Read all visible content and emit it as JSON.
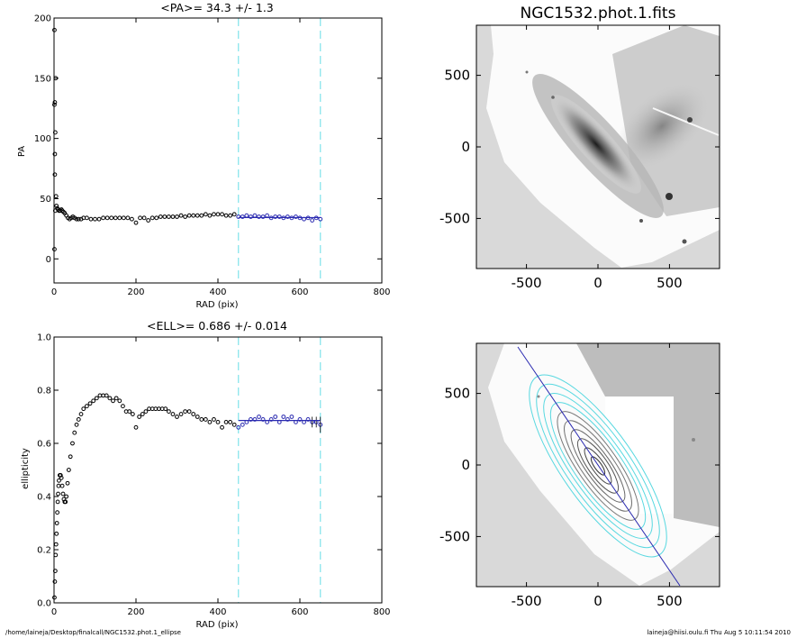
{
  "chart_data": [
    {
      "id": "pa",
      "type": "scatter",
      "title": "<PA>=  34.3 +/-   1.3",
      "xlabel": "RAD (pix)",
      "ylabel": "PA",
      "xlim": [
        0,
        800
      ],
      "ylim": [
        -20,
        200
      ],
      "xticks": [
        0,
        200,
        400,
        600,
        800
      ],
      "yticks": [
        0,
        50,
        100,
        150,
        200
      ],
      "fit_range": [
        450,
        650
      ],
      "fit_mean": 34.3,
      "fit_error": 1.3,
      "points": [
        [
          1,
          128
        ],
        [
          2,
          130
        ],
        [
          1,
          190
        ],
        [
          2,
          70
        ],
        [
          1,
          8
        ],
        [
          3,
          105
        ],
        [
          4,
          150
        ],
        [
          2,
          87
        ],
        [
          3,
          40
        ],
        [
          5,
          52
        ],
        [
          6,
          44
        ],
        [
          8,
          42
        ],
        [
          10,
          41
        ],
        [
          12,
          40
        ],
        [
          15,
          40
        ],
        [
          18,
          41
        ],
        [
          20,
          40
        ],
        [
          23,
          39
        ],
        [
          26,
          38
        ],
        [
          30,
          36
        ],
        [
          34,
          34
        ],
        [
          38,
          33
        ],
        [
          42,
          34
        ],
        [
          46,
          35
        ],
        [
          50,
          34
        ],
        [
          55,
          33
        ],
        [
          60,
          33
        ],
        [
          66,
          33
        ],
        [
          72,
          34
        ],
        [
          80,
          34
        ],
        [
          90,
          33
        ],
        [
          100,
          33
        ],
        [
          110,
          33
        ],
        [
          120,
          34
        ],
        [
          130,
          34
        ],
        [
          140,
          34
        ],
        [
          150,
          34
        ],
        [
          160,
          34
        ],
        [
          170,
          34
        ],
        [
          180,
          34
        ],
        [
          190,
          33
        ],
        [
          200,
          30
        ],
        [
          210,
          34
        ],
        [
          220,
          34
        ],
        [
          230,
          32
        ],
        [
          240,
          34
        ],
        [
          250,
          34
        ],
        [
          260,
          35
        ],
        [
          270,
          35
        ],
        [
          280,
          35
        ],
        [
          290,
          35
        ],
        [
          300,
          35
        ],
        [
          310,
          36
        ],
        [
          320,
          35
        ],
        [
          330,
          36
        ],
        [
          340,
          36
        ],
        [
          350,
          36
        ],
        [
          360,
          36
        ],
        [
          370,
          37
        ],
        [
          380,
          36
        ],
        [
          390,
          37
        ],
        [
          400,
          37
        ],
        [
          410,
          37
        ],
        [
          420,
          36
        ],
        [
          430,
          36
        ],
        [
          440,
          37
        ],
        [
          450,
          35
        ],
        [
          460,
          35
        ],
        [
          470,
          36
        ],
        [
          480,
          35
        ],
        [
          490,
          36
        ],
        [
          500,
          35
        ],
        [
          510,
          35
        ],
        [
          520,
          36
        ],
        [
          530,
          34
        ],
        [
          540,
          35
        ],
        [
          550,
          35
        ],
        [
          560,
          34
        ],
        [
          570,
          35
        ],
        [
          580,
          34
        ],
        [
          590,
          35
        ],
        [
          600,
          34
        ],
        [
          610,
          33
        ],
        [
          620,
          34
        ],
        [
          630,
          32
        ],
        [
          640,
          34
        ],
        [
          650,
          33
        ]
      ]
    },
    {
      "id": "ell",
      "type": "scatter",
      "title": "<ELL>= 0.686 +/-  0.014",
      "xlabel": "RAD (pix)",
      "ylabel": "ellipticity",
      "xlim": [
        0,
        800
      ],
      "ylim": [
        0,
        1
      ],
      "xticks": [
        0,
        200,
        400,
        600,
        800
      ],
      "yticks": [
        0.0,
        0.2,
        0.4,
        0.6,
        0.8,
        1.0
      ],
      "fit_range": [
        450,
        650
      ],
      "fit_mean": 0.686,
      "fit_error": 0.014,
      "points": [
        [
          1,
          0.02
        ],
        [
          2,
          0.08
        ],
        [
          3,
          0.12
        ],
        [
          4,
          0.18
        ],
        [
          5,
          0.22
        ],
        [
          6,
          0.26
        ],
        [
          7,
          0.3
        ],
        [
          8,
          0.34
        ],
        [
          9,
          0.38
        ],
        [
          10,
          0.41
        ],
        [
          11,
          0.44
        ],
        [
          12,
          0.46
        ],
        [
          14,
          0.48
        ],
        [
          16,
          0.48
        ],
        [
          18,
          0.47
        ],
        [
          20,
          0.44
        ],
        [
          22,
          0.41
        ],
        [
          24,
          0.39
        ],
        [
          26,
          0.38
        ],
        [
          28,
          0.38
        ],
        [
          30,
          0.4
        ],
        [
          33,
          0.45
        ],
        [
          36,
          0.5
        ],
        [
          40,
          0.55
        ],
        [
          45,
          0.6
        ],
        [
          50,
          0.64
        ],
        [
          55,
          0.67
        ],
        [
          60,
          0.69
        ],
        [
          66,
          0.71
        ],
        [
          72,
          0.73
        ],
        [
          80,
          0.74
        ],
        [
          88,
          0.75
        ],
        [
          96,
          0.76
        ],
        [
          104,
          0.77
        ],
        [
          112,
          0.78
        ],
        [
          120,
          0.78
        ],
        [
          128,
          0.78
        ],
        [
          136,
          0.77
        ],
        [
          144,
          0.76
        ],
        [
          152,
          0.77
        ],
        [
          160,
          0.76
        ],
        [
          168,
          0.74
        ],
        [
          176,
          0.72
        ],
        [
          184,
          0.72
        ],
        [
          192,
          0.71
        ],
        [
          200,
          0.66
        ],
        [
          208,
          0.7
        ],
        [
          216,
          0.71
        ],
        [
          224,
          0.72
        ],
        [
          232,
          0.73
        ],
        [
          240,
          0.73
        ],
        [
          248,
          0.73
        ],
        [
          256,
          0.73
        ],
        [
          264,
          0.73
        ],
        [
          272,
          0.73
        ],
        [
          280,
          0.72
        ],
        [
          290,
          0.71
        ],
        [
          300,
          0.7
        ],
        [
          310,
          0.71
        ],
        [
          320,
          0.72
        ],
        [
          330,
          0.72
        ],
        [
          340,
          0.71
        ],
        [
          350,
          0.7
        ],
        [
          360,
          0.69
        ],
        [
          370,
          0.69
        ],
        [
          380,
          0.68
        ],
        [
          390,
          0.69
        ],
        [
          400,
          0.68
        ],
        [
          410,
          0.66
        ],
        [
          420,
          0.68
        ],
        [
          430,
          0.68
        ],
        [
          440,
          0.67
        ],
        [
          450,
          0.66
        ],
        [
          460,
          0.67
        ],
        [
          470,
          0.68
        ],
        [
          480,
          0.69
        ],
        [
          490,
          0.69
        ],
        [
          500,
          0.7
        ],
        [
          510,
          0.69
        ],
        [
          520,
          0.68
        ],
        [
          530,
          0.69
        ],
        [
          540,
          0.7
        ],
        [
          550,
          0.68
        ],
        [
          560,
          0.7
        ],
        [
          570,
          0.69
        ],
        [
          580,
          0.7
        ],
        [
          590,
          0.68
        ],
        [
          600,
          0.69
        ],
        [
          610,
          0.68
        ],
        [
          620,
          0.69
        ],
        [
          630,
          0.68
        ],
        [
          640,
          0.68
        ],
        [
          650,
          0.67
        ]
      ],
      "error_bars": [
        [
          630,
          0.02
        ],
        [
          640,
          0.02
        ],
        [
          650,
          0.03
        ]
      ]
    },
    {
      "id": "img1",
      "type": "image",
      "title": "NGC1532.phot.1.fits",
      "xlim": [
        -850,
        850
      ],
      "ylim": [
        -850,
        850
      ],
      "xticks": [
        -500,
        0,
        500
      ],
      "yticks": [
        -500,
        0,
        500
      ]
    },
    {
      "id": "img2",
      "type": "image",
      "title": "",
      "xlim": [
        -850,
        850
      ],
      "ylim": [
        -850,
        850
      ],
      "xticks": [
        -500,
        0,
        500
      ],
      "yticks": [
        -500,
        0,
        500
      ]
    }
  ],
  "colors": {
    "data": "#000000",
    "fit": "#2a2ab0",
    "range": "#7fe3ea",
    "contour_outer": "#58d8e0",
    "contour_inner": "#777777",
    "sky_bg": "#d9d9d9"
  },
  "footer": {
    "path": "/home/laineja/Desktop/finalcall/NGC1532.phot.1_ellipse",
    "stamp": "laineja@hiisi.oulu.fi  Thu Aug  5 10:11:54 2010"
  }
}
